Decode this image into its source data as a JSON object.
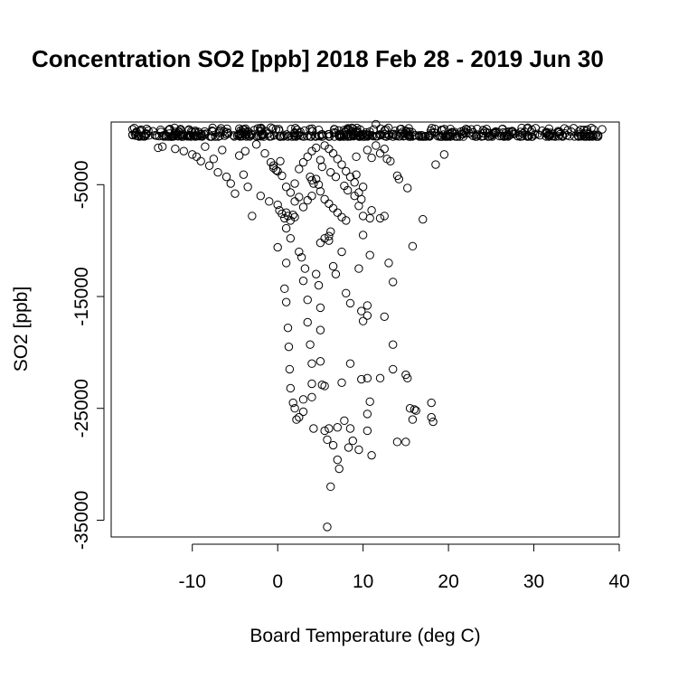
{
  "chart_data": {
    "type": "scatter",
    "title": "Concentration SO2 [ppb] 2018 Feb 28 - 2019 Jun 30",
    "xlabel": "Board Temperature (deg C)",
    "ylabel": "SO2 [ppb]",
    "xlim": [
      -19.5,
      40
    ],
    "ylim": [
      -36500,
      600
    ],
    "x_ticks": [
      -10,
      0,
      10,
      20,
      30,
      40
    ],
    "y_ticks": [
      -35000,
      -25000,
      -15000,
      -5000
    ],
    "x_tick_labels": [
      "-10",
      "0",
      "10",
      "20",
      "30",
      "40"
    ],
    "y_tick_labels": [
      "-35000",
      "-25000",
      "-15000",
      "-5000"
    ],
    "grid": false,
    "legend": "none",
    "marker": "open-circle",
    "dense_band": {
      "x_range": [
        -17,
        38
      ],
      "y_range": [
        -700,
        100
      ],
      "count": 520
    },
    "points": [
      {
        "x": -17,
        "y": -50
      },
      {
        "x": -16,
        "y": -80
      },
      {
        "x": 38,
        "y": -50
      },
      {
        "x": 37,
        "y": -70
      },
      {
        "x": 11.5,
        "y": 400
      },
      {
        "x": -14,
        "y": -1700
      },
      {
        "x": -13.5,
        "y": -1600
      },
      {
        "x": -12,
        "y": -1800
      },
      {
        "x": -11,
        "y": -2000
      },
      {
        "x": -10,
        "y": -2300
      },
      {
        "x": -9.5,
        "y": -2500
      },
      {
        "x": -9,
        "y": -2900
      },
      {
        "x": -8,
        "y": -3300
      },
      {
        "x": -7.5,
        "y": -2700
      },
      {
        "x": -7,
        "y": -3900
      },
      {
        "x": -6,
        "y": -4300
      },
      {
        "x": -5.5,
        "y": -4900
      },
      {
        "x": -5,
        "y": -5800
      },
      {
        "x": -4,
        "y": -4100
      },
      {
        "x": -3.5,
        "y": -5200
      },
      {
        "x": -3,
        "y": -7800
      },
      {
        "x": -2,
        "y": -6000
      },
      {
        "x": -1,
        "y": -6500
      },
      {
        "x": -0.5,
        "y": -3500
      },
      {
        "x": 0,
        "y": -3800
      },
      {
        "x": 0,
        "y": -6800
      },
      {
        "x": 0.2,
        "y": -7300
      },
      {
        "x": 0.5,
        "y": -7600
      },
      {
        "x": 0.8,
        "y": -8000
      },
      {
        "x": 1,
        "y": -7500
      },
      {
        "x": 1.2,
        "y": -7800
      },
      {
        "x": 1.5,
        "y": -8200
      },
      {
        "x": 1.8,
        "y": -7700
      },
      {
        "x": 2,
        "y": -7900
      },
      {
        "x": 0,
        "y": -10600
      },
      {
        "x": 1,
        "y": -8900
      },
      {
        "x": 1,
        "y": -12000
      },
      {
        "x": 0.8,
        "y": -14300
      },
      {
        "x": 1,
        "y": -15500
      },
      {
        "x": 1.2,
        "y": -17800
      },
      {
        "x": 1.3,
        "y": -19500
      },
      {
        "x": 1.4,
        "y": -21500
      },
      {
        "x": 1.5,
        "y": -23200
      },
      {
        "x": 1.8,
        "y": -24500
      },
      {
        "x": 2,
        "y": -25000
      },
      {
        "x": 2.2,
        "y": -26000
      },
      {
        "x": 2.5,
        "y": -25800
      },
      {
        "x": 3,
        "y": -24200
      },
      {
        "x": 3,
        "y": -25300
      },
      {
        "x": 1.5,
        "y": -9800
      },
      {
        "x": 2.5,
        "y": -11000
      },
      {
        "x": 2.8,
        "y": -11500
      },
      {
        "x": 3,
        "y": -13600
      },
      {
        "x": 3.2,
        "y": -12500
      },
      {
        "x": 3.5,
        "y": -15300
      },
      {
        "x": 3.5,
        "y": -17300
      },
      {
        "x": 3.8,
        "y": -19300
      },
      {
        "x": 4,
        "y": -21000
      },
      {
        "x": 4,
        "y": -22800
      },
      {
        "x": 4,
        "y": -24000
      },
      {
        "x": 4.2,
        "y": -26800
      },
      {
        "x": 4.5,
        "y": -13000
      },
      {
        "x": 4.8,
        "y": -14000
      },
      {
        "x": 5,
        "y": -16000
      },
      {
        "x": 5,
        "y": -18000
      },
      {
        "x": 5,
        "y": -20800
      },
      {
        "x": 5.2,
        "y": -22900
      },
      {
        "x": 5.5,
        "y": -23000
      },
      {
        "x": 5.5,
        "y": -27000
      },
      {
        "x": 5.8,
        "y": -27800
      },
      {
        "x": 6,
        "y": -26800
      },
      {
        "x": 6.2,
        "y": -32000
      },
      {
        "x": 5.8,
        "y": -35600
      },
      {
        "x": 6.5,
        "y": -28300
      },
      {
        "x": 7,
        "y": -26700
      },
      {
        "x": 7,
        "y": -29600
      },
      {
        "x": 7.2,
        "y": -30400
      },
      {
        "x": 7.5,
        "y": -22700
      },
      {
        "x": 7.8,
        "y": -26100
      },
      {
        "x": 8.3,
        "y": -28500
      },
      {
        "x": 8.5,
        "y": -21000
      },
      {
        "x": 8.5,
        "y": -26800
      },
      {
        "x": 8.8,
        "y": -27900
      },
      {
        "x": 9.5,
        "y": -28700
      },
      {
        "x": 9.8,
        "y": -22400
      },
      {
        "x": 10.5,
        "y": -22300
      },
      {
        "x": 10.5,
        "y": -25500
      },
      {
        "x": 10.8,
        "y": -24400
      },
      {
        "x": 11,
        "y": -29200
      },
      {
        "x": 10.5,
        "y": -27000
      },
      {
        "x": 12,
        "y": -22300
      },
      {
        "x": 13.5,
        "y": -21500
      },
      {
        "x": 13.5,
        "y": -19300
      },
      {
        "x": 14,
        "y": -28000
      },
      {
        "x": 15,
        "y": -28000
      },
      {
        "x": 15,
        "y": -22000
      },
      {
        "x": 15.2,
        "y": -22300
      },
      {
        "x": 15.5,
        "y": -25000
      },
      {
        "x": 15.8,
        "y": -26000
      },
      {
        "x": 16,
        "y": -25100
      },
      {
        "x": 16.2,
        "y": -25200
      },
      {
        "x": 18,
        "y": -24500
      },
      {
        "x": 18,
        "y": -25800
      },
      {
        "x": 18.2,
        "y": -26200
      },
      {
        "x": 5,
        "y": -10200
      },
      {
        "x": 5.5,
        "y": -9800
      },
      {
        "x": 6,
        "y": -9600
      },
      {
        "x": 6,
        "y": -10000
      },
      {
        "x": 6.2,
        "y": -9200
      },
      {
        "x": 6.5,
        "y": -12300
      },
      {
        "x": 6.8,
        "y": -13000
      },
      {
        "x": 7.5,
        "y": -11000
      },
      {
        "x": 8,
        "y": -14700
      },
      {
        "x": 8.5,
        "y": -15600
      },
      {
        "x": 9.5,
        "y": -12500
      },
      {
        "x": 9.8,
        "y": -16300
      },
      {
        "x": 10,
        "y": -17200
      },
      {
        "x": 10.5,
        "y": -15800
      },
      {
        "x": 10.5,
        "y": -16700
      },
      {
        "x": 10.8,
        "y": -11300
      },
      {
        "x": 12.5,
        "y": -16800
      },
      {
        "x": 13,
        "y": -12000
      },
      {
        "x": 13.5,
        "y": -13700
      },
      {
        "x": 10,
        "y": -9500
      },
      {
        "x": 15.8,
        "y": -10500
      },
      {
        "x": 17,
        "y": -8100
      },
      {
        "x": 15.2,
        "y": -5300
      },
      {
        "x": 18.5,
        "y": -3200
      },
      {
        "x": 19.5,
        "y": -2300
      },
      {
        "x": 14,
        "y": -4200
      },
      {
        "x": 14.2,
        "y": -4500
      },
      {
        "x": 12,
        "y": -8000
      },
      {
        "x": 12.5,
        "y": -7800
      },
      {
        "x": 11,
        "y": -7300
      },
      {
        "x": 10.8,
        "y": -8000
      },
      {
        "x": 10,
        "y": -7800
      },
      {
        "x": 9.5,
        "y": -6900
      },
      {
        "x": 9.8,
        "y": -6300
      },
      {
        "x": 9.5,
        "y": -5700
      },
      {
        "x": 10,
        "y": -5200
      },
      {
        "x": 9,
        "y": -4800
      },
      {
        "x": 8.5,
        "y": -4300
      },
      {
        "x": 8,
        "y": -3800
      },
      {
        "x": 7.5,
        "y": -3200
      },
      {
        "x": 7,
        "y": -2700
      },
      {
        "x": 6.5,
        "y": -2200
      },
      {
        "x": 6,
        "y": -1800
      },
      {
        "x": 5.5,
        "y": -1500
      },
      {
        "x": 3.8,
        "y": -4300
      },
      {
        "x": 4,
        "y": -4600
      },
      {
        "x": 4.2,
        "y": -4900
      },
      {
        "x": 4.5,
        "y": -4500
      },
      {
        "x": 4.8,
        "y": -5000
      },
      {
        "x": 5,
        "y": -5600
      },
      {
        "x": 5.5,
        "y": -6300
      },
      {
        "x": 6,
        "y": -6700
      },
      {
        "x": 6.5,
        "y": -7100
      },
      {
        "x": 7,
        "y": -7500
      },
      {
        "x": 7.5,
        "y": -7900
      },
      {
        "x": 8,
        "y": -8200
      },
      {
        "x": 4,
        "y": -6000
      },
      {
        "x": 3.5,
        "y": -6400
      },
      {
        "x": 3,
        "y": -7000
      },
      {
        "x": 2.5,
        "y": -6100
      },
      {
        "x": 2,
        "y": -4900
      },
      {
        "x": 2.5,
        "y": -3600
      },
      {
        "x": 3,
        "y": -3000
      },
      {
        "x": 3.5,
        "y": -2500
      },
      {
        "x": 4,
        "y": -2000
      },
      {
        "x": 4.5,
        "y": -1700
      },
      {
        "x": 5,
        "y": -2800
      },
      {
        "x": 5.2,
        "y": -3400
      },
      {
        "x": -0.5,
        "y": -3300
      },
      {
        "x": -0.2,
        "y": -3700
      },
      {
        "x": -0.8,
        "y": -3000
      },
      {
        "x": 0.3,
        "y": -2900
      },
      {
        "x": 0.5,
        "y": -4200
      },
      {
        "x": 1,
        "y": -5200
      },
      {
        "x": 1.5,
        "y": -5700
      },
      {
        "x": 2,
        "y": -6500
      },
      {
        "x": 11,
        "y": -2600
      },
      {
        "x": 12,
        "y": -2200
      },
      {
        "x": 12.8,
        "y": -2700
      },
      {
        "x": 13.2,
        "y": -2900
      },
      {
        "x": 12.5,
        "y": -1800
      },
      {
        "x": 11.5,
        "y": -1500
      },
      {
        "x": 10.5,
        "y": -1900
      },
      {
        "x": 9.2,
        "y": -2500
      },
      {
        "x": -4.5,
        "y": -2400
      },
      {
        "x": -3.8,
        "y": -2000
      },
      {
        "x": -6.5,
        "y": -1900
      },
      {
        "x": -8.5,
        "y": -1600
      },
      {
        "x": -2.5,
        "y": -1400
      },
      {
        "x": -1.5,
        "y": -2200
      },
      {
        "x": 7.8,
        "y": -5100
      },
      {
        "x": 8.2,
        "y": -5500
      },
      {
        "x": 9,
        "y": -6000
      },
      {
        "x": 9.2,
        "y": -4100
      },
      {
        "x": 6.8,
        "y": -4300
      },
      {
        "x": 6.2,
        "y": -3900
      }
    ]
  }
}
